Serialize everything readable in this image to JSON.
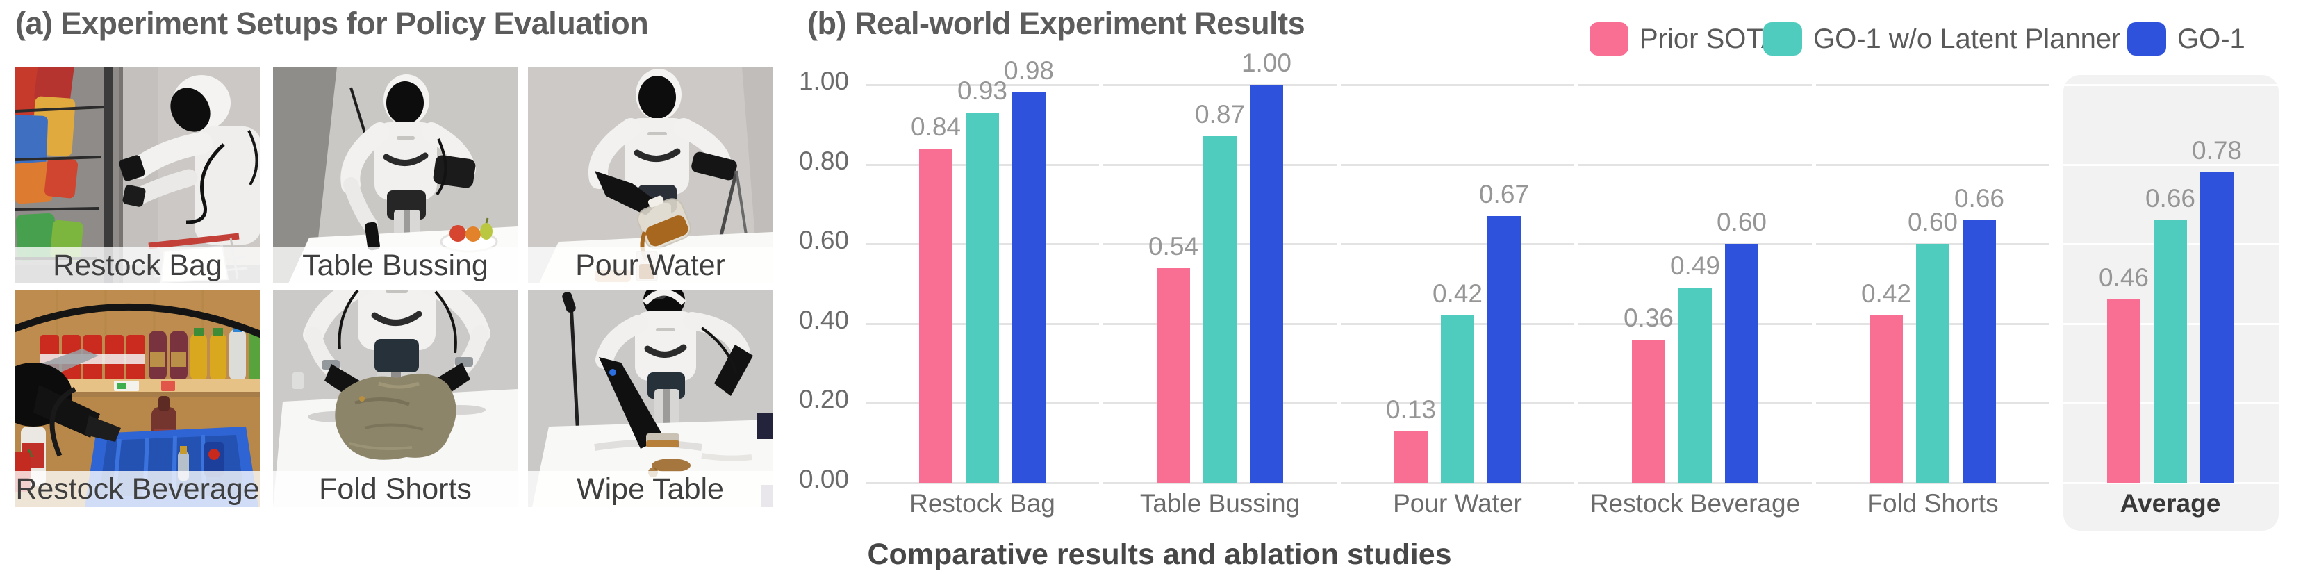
{
  "panel_a": {
    "title": "(a) Experiment Setups for Policy Evaluation",
    "photos": [
      {
        "label": "Restock Bag"
      },
      {
        "label": "Table Bussing"
      },
      {
        "label": "Pour Water"
      },
      {
        "label": "Restock Beverage"
      },
      {
        "label": "Fold Shorts"
      },
      {
        "label": "Wipe Table"
      }
    ]
  },
  "panel_b": {
    "title": "(b) Real-world Experiment Results",
    "caption": "Comparative results and ablation studies"
  },
  "chart_data": {
    "type": "bar",
    "title": "(b) Real-world Experiment Results",
    "categories": [
      "Restock Bag",
      "Table Bussing",
      "Pour Water",
      "Restock Beverage",
      "Fold Shorts",
      "Average"
    ],
    "series": [
      {
        "name": "Prior SOTA",
        "color": "#F96E93",
        "values": [
          0.84,
          0.54,
          0.13,
          0.36,
          0.42,
          0.46
        ]
      },
      {
        "name": "GO-1 w/o Latent Planner",
        "color": "#50CCBE",
        "values": [
          0.93,
          0.87,
          0.42,
          0.49,
          0.6,
          0.66
        ]
      },
      {
        "name": "GO-1",
        "color": "#2F52DC",
        "values": [
          0.98,
          1.0,
          0.67,
          0.6,
          0.66,
          0.78
        ]
      }
    ],
    "xlabel": "",
    "ylabel": "",
    "ylim": [
      0,
      1.0
    ],
    "yticks": [
      "0.00",
      "0.20",
      "0.40",
      "0.60",
      "0.80",
      "1.00"
    ],
    "grid": "horizontal-segmented",
    "grid_color": "#E3E3E4",
    "legend_position": "top-right",
    "value_labels": true,
    "highlight_category": "Average",
    "highlight_color": "#F2F2F3"
  }
}
